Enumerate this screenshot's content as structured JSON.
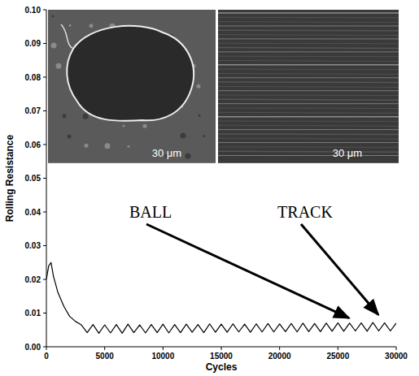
{
  "chart_data": {
    "type": "line",
    "x_label": "Cycles",
    "y_label": "Rolling Resistance",
    "color": "#000000",
    "grid": false,
    "annotations": [
      "BALL",
      "TRACK"
    ],
    "inset_labels": [
      "30 μm",
      "30 μm"
    ],
    "xlim": [
      0,
      30000
    ],
    "xticks": [
      0,
      5000,
      10000,
      15000,
      20000,
      25000,
      30000
    ],
    "ylim": [
      0,
      0.1
    ],
    "yticks": [
      {
        "value": 0,
        "label": "0.00"
      },
      {
        "value": 0.01,
        "label": "0.01"
      },
      {
        "value": 0.02,
        "label": "0.02"
      },
      {
        "value": 0.03,
        "label": "0.03"
      },
      {
        "value": 0.04,
        "label": "0.04"
      },
      {
        "value": 0.05,
        "label": "0.05"
      },
      {
        "value": 0.06,
        "label": "0.06"
      },
      {
        "value": 0.07,
        "label": "0.07"
      },
      {
        "value": 0.08,
        "label": "0.08"
      },
      {
        "value": 0.09,
        "label": "0.09"
      },
      {
        "value": 0.1,
        "label": "0.10"
      }
    ],
    "x": [
      0,
      200,
      400,
      600,
      1000,
      1500,
      2000,
      2500,
      3000,
      3500,
      4000,
      4500,
      5000,
      5500,
      6000,
      6500,
      7000,
      7500,
      8000,
      8500,
      9000,
      9500,
      10000,
      10500,
      11000,
      11500,
      12000,
      12500,
      13000,
      13500,
      14000,
      14500,
      15000,
      15500,
      16000,
      16500,
      17000,
      17500,
      18000,
      18500,
      19000,
      19500,
      20000,
      20500,
      21000,
      21500,
      22000,
      22500,
      23000,
      23500,
      24000,
      24500,
      25000,
      25500,
      26000,
      26500,
      27000,
      27500,
      28000,
      28500,
      29000,
      29500,
      30000
    ],
    "values": [
      0.02,
      0.024,
      0.025,
      0.021,
      0.016,
      0.012,
      0.009,
      0.0075,
      0.0065,
      0.0042,
      0.0066,
      0.004,
      0.0065,
      0.0041,
      0.0066,
      0.004,
      0.0067,
      0.0042,
      0.0065,
      0.0041,
      0.0066,
      0.0042,
      0.0067,
      0.0041,
      0.0066,
      0.0042,
      0.0067,
      0.0043,
      0.0066,
      0.0042,
      0.0068,
      0.0043,
      0.0067,
      0.0043,
      0.0068,
      0.0044,
      0.0067,
      0.0043,
      0.0068,
      0.0044,
      0.0069,
      0.0044,
      0.0068,
      0.0045,
      0.0069,
      0.0044,
      0.007,
      0.0045,
      0.0069,
      0.0045,
      0.007,
      0.0046,
      0.0071,
      0.0046,
      0.007,
      0.0047,
      0.0071,
      0.0046,
      0.0072,
      0.0047,
      0.0071,
      0.0047,
      0.007
    ]
  }
}
